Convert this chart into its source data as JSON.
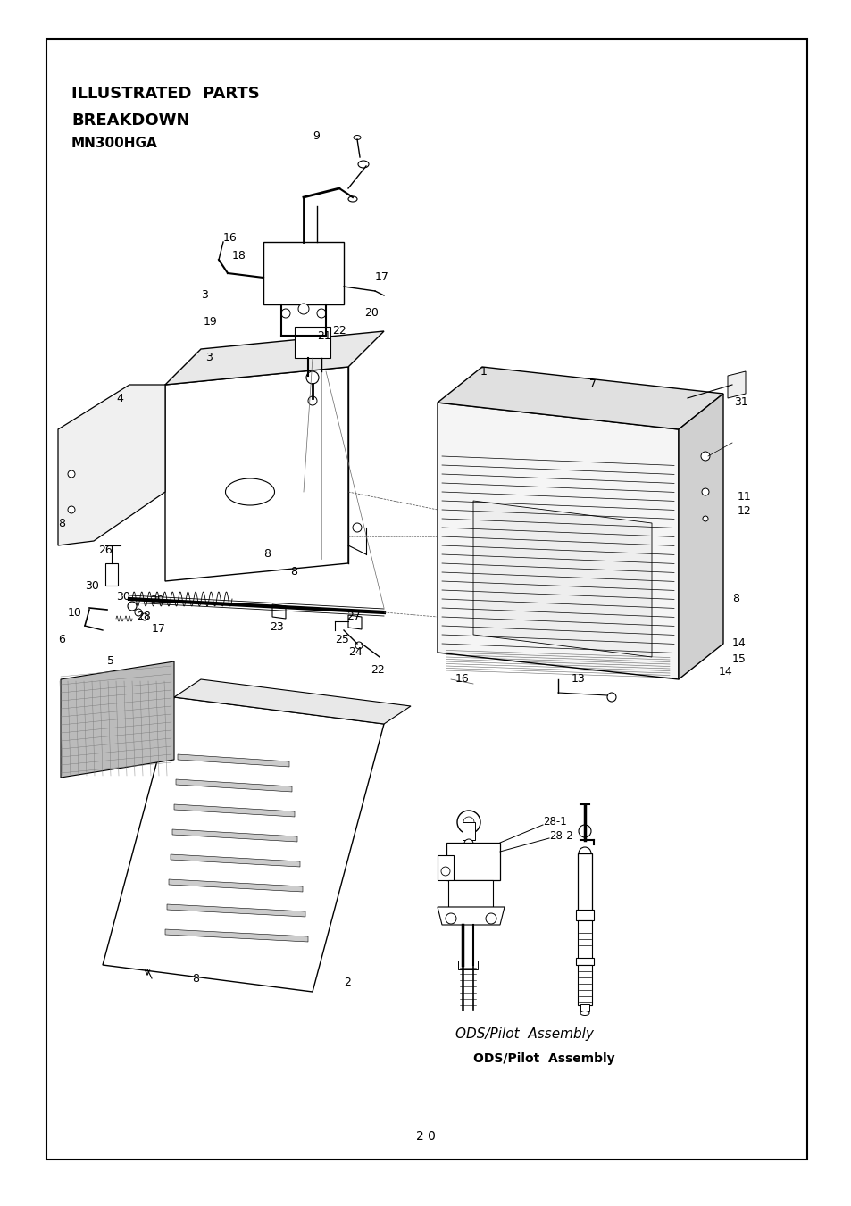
{
  "page_bg": "#ffffff",
  "border_color": "#000000",
  "title_line1": "ILLUSTRATED  PARTS",
  "title_line2": "BREAKDOWN",
  "title_line3": "MN300HGA",
  "page_number": "2 0",
  "caption_italic": "ODS/Pilot  Assembly",
  "caption_bold": "ODS/Pilot  Assembly",
  "fig_width": 9.54,
  "fig_height": 13.51,
  "dpi": 100
}
